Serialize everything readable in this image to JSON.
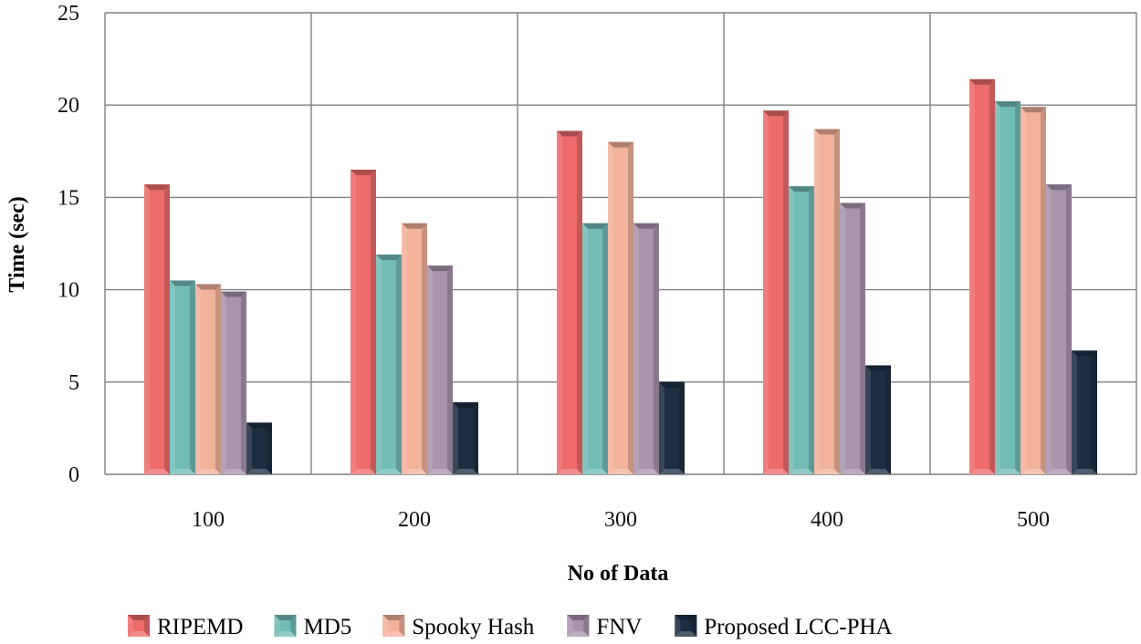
{
  "chart_data": {
    "type": "bar",
    "title": "",
    "xlabel": "No of Data",
    "ylabel": "Time (sec)",
    "categories": [
      "100",
      "200",
      "300",
      "400",
      "500"
    ],
    "ylim": [
      0,
      25
    ],
    "yticks": [
      0,
      5,
      10,
      15,
      20,
      25
    ],
    "grid": true,
    "legend": "bottom",
    "series": [
      {
        "name": "RIPEMD",
        "color": "#ee6b6b",
        "values": [
          15.7,
          16.5,
          18.6,
          19.7,
          21.4
        ]
      },
      {
        "name": "MD5",
        "color": "#72bcb8",
        "values": [
          10.5,
          11.9,
          13.6,
          15.6,
          20.2
        ]
      },
      {
        "name": "Spooky Hash",
        "color": "#f2b199",
        "values": [
          10.3,
          13.6,
          18.0,
          18.7,
          19.9
        ]
      },
      {
        "name": "FNV",
        "color": "#a894ad",
        "values": [
          9.9,
          11.3,
          13.6,
          14.7,
          15.7
        ]
      },
      {
        "name": "Proposed LCC-PHA",
        "color": "#1c2e42",
        "values": [
          2.8,
          3.9,
          5.0,
          5.9,
          6.7
        ]
      }
    ]
  }
}
